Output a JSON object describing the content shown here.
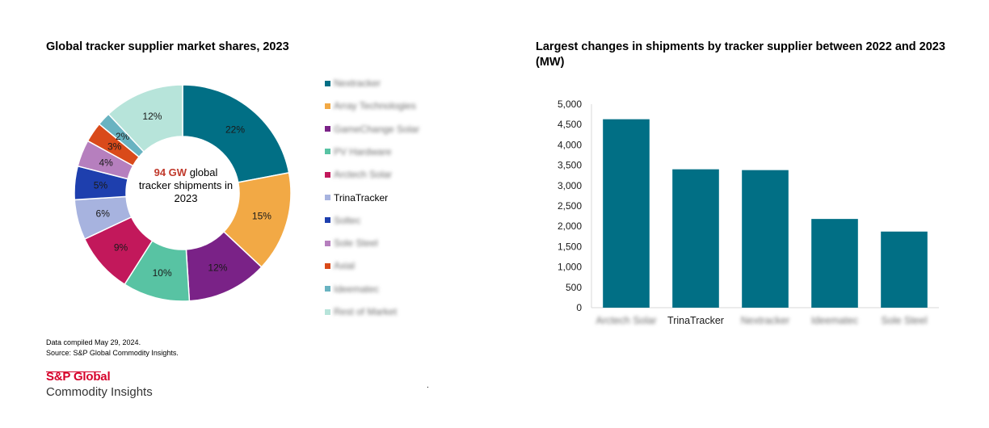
{
  "notes": {
    "compiled": "Data compiled May 29, 2024.",
    "source": "Source: S&P Global Commodity Insights."
  },
  "brand": {
    "line1": "S&P Global",
    "line2": "Commodity Insights"
  },
  "stray_mark": ".",
  "chart_data": [
    {
      "type": "pie",
      "variant": "donut",
      "title": "Global tracker supplier market shares, 2023",
      "center_label": {
        "highlight": "94 GW",
        "rest": "global tracker shipments in 2023"
      },
      "slices": [
        {
          "label": "Nextracker",
          "value": 22,
          "display": "22%",
          "color": "#016f85",
          "blurred": true
        },
        {
          "label": "Array Technologies",
          "value": 15,
          "display": "15%",
          "color": "#f2a945",
          "blurred": true
        },
        {
          "label": "GameChange Solar",
          "value": 12,
          "display": "12%",
          "color": "#7a2287",
          "blurred": true
        },
        {
          "label": "PV Hardware",
          "value": 10,
          "display": "10%",
          "color": "#58c3a3",
          "blurred": true
        },
        {
          "label": "Arctech Solar",
          "value": 9,
          "display": "9%",
          "color": "#c2185b",
          "blurred": true
        },
        {
          "label": "TrinaTracker",
          "value": 6,
          "display": "6%",
          "color": "#a7b3df",
          "blurred": false
        },
        {
          "label": "Soltec",
          "value": 5,
          "display": "5%",
          "color": "#1e3fae",
          "blurred": true
        },
        {
          "label": "Sole Steel",
          "value": 4,
          "display": "4%",
          "color": "#b67fbe",
          "blurred": true
        },
        {
          "label": "Axial",
          "value": 3,
          "display": "3%",
          "color": "#d94a1a",
          "blurred": true
        },
        {
          "label": "Ideematec",
          "value": 2,
          "display": "2%",
          "color": "#69b3c1",
          "blurred": true
        },
        {
          "label": "Rest of Market",
          "value": 12,
          "display": "12%",
          "color": "#b7e4da",
          "blurred": true
        }
      ]
    },
    {
      "type": "bar",
      "title": "Largest changes in shipments by tracker supplier between 2022 and 2023 (MW)",
      "categories": [
        {
          "label": "Arctech Solar",
          "blurred": true
        },
        {
          "label": "TrinaTracker",
          "blurred": false
        },
        {
          "label": "Nextracker",
          "blurred": true
        },
        {
          "label": "Ideematec",
          "blurred": true
        },
        {
          "label": "Sole Steel",
          "blurred": true
        }
      ],
      "values": [
        4630,
        3400,
        3380,
        2180,
        1870
      ],
      "color": "#016f85",
      "ylim": [
        0,
        5000
      ],
      "yticks": [
        0,
        500,
        1000,
        1500,
        2000,
        2500,
        3000,
        3500,
        4000,
        4500,
        5000
      ],
      "ytick_labels": [
        "0",
        "500",
        "1,000",
        "1,500",
        "2,000",
        "2,500",
        "3,000",
        "3,500",
        "4,000",
        "4,500",
        "5,000"
      ],
      "xlabel": "",
      "ylabel": "",
      "grid": false
    }
  ]
}
